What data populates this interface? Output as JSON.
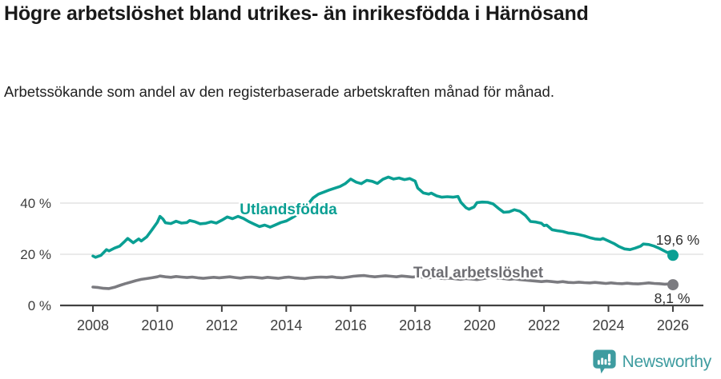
{
  "header": {
    "title": "Högre arbetslöshet bland utrikes- än inrikesfödda i Härnösand",
    "subtitle": "Arbetssökande som andel av den registerbaserade arbetskraften månad för månad."
  },
  "footer": {
    "brand": "Newsworthy"
  },
  "chart_data": {
    "type": "line",
    "title": "Högre arbetslöshet bland utrikes- än inrikesfödda i Härnösand",
    "subtitle": "Arbetssökande som andel av den registerbaserade arbetskraften månad för månad.",
    "unit": "%",
    "grid": "horizontal-only",
    "legend_position": "inline-labels",
    "colors": {
      "grid": "#e3e3e3",
      "axis": "#404040",
      "axis_text": "#3d3d3d",
      "value_label": "#2e2e2e",
      "background": "#ffffff"
    },
    "x_axis": {
      "range": [
        2007,
        2026.95
      ],
      "ticks": [
        {
          "value": 2008,
          "label": "2008"
        },
        {
          "value": 2010,
          "label": "2010"
        },
        {
          "value": 2012,
          "label": "2012"
        },
        {
          "value": 2014,
          "label": "2014"
        },
        {
          "value": 2016,
          "label": "2016"
        },
        {
          "value": 2018,
          "label": "2018"
        },
        {
          "value": 2020,
          "label": "2020"
        },
        {
          "value": 2022,
          "label": "2022"
        },
        {
          "value": 2024,
          "label": "2024"
        },
        {
          "value": 2026,
          "label": "2026"
        }
      ]
    },
    "y_axis": {
      "range": [
        0,
        55
      ],
      "ticks": [
        {
          "value": 0,
          "label": "0 %"
        },
        {
          "value": 20,
          "label": "20 %"
        },
        {
          "value": 40,
          "label": "40 %"
        }
      ]
    },
    "series": [
      {
        "id": "utlandsfodda",
        "name": "Utlandsfödda",
        "color": "#0a9f93",
        "label_color": "#0a9f93",
        "end_label": "19,6 %",
        "end_value": 19.6,
        "points": [
          [
            2008.0,
            19.3
          ],
          [
            2008.08,
            18.8
          ],
          [
            2008.25,
            19.6
          ],
          [
            2008.42,
            21.8
          ],
          [
            2008.5,
            21.3
          ],
          [
            2008.67,
            22.4
          ],
          [
            2008.83,
            23.2
          ],
          [
            2009.0,
            25.2
          ],
          [
            2009.08,
            26.2
          ],
          [
            2009.25,
            24.5
          ],
          [
            2009.42,
            26.0
          ],
          [
            2009.5,
            25.2
          ],
          [
            2009.67,
            26.8
          ],
          [
            2009.83,
            29.5
          ],
          [
            2010.0,
            32.5
          ],
          [
            2010.08,
            34.8
          ],
          [
            2010.17,
            33.8
          ],
          [
            2010.25,
            32.3
          ],
          [
            2010.42,
            32.0
          ],
          [
            2010.58,
            32.9
          ],
          [
            2010.75,
            32.2
          ],
          [
            2010.92,
            32.4
          ],
          [
            2011.0,
            33.2
          ],
          [
            2011.17,
            32.7
          ],
          [
            2011.33,
            31.9
          ],
          [
            2011.5,
            32.1
          ],
          [
            2011.67,
            32.7
          ],
          [
            2011.83,
            32.2
          ],
          [
            2012.0,
            33.3
          ],
          [
            2012.17,
            34.6
          ],
          [
            2012.33,
            33.9
          ],
          [
            2012.5,
            34.8
          ],
          [
            2012.67,
            34.0
          ],
          [
            2012.83,
            32.8
          ],
          [
            2013.0,
            31.8
          ],
          [
            2013.17,
            30.8
          ],
          [
            2013.33,
            31.4
          ],
          [
            2013.5,
            30.6
          ],
          [
            2013.67,
            31.5
          ],
          [
            2013.83,
            32.4
          ],
          [
            2014.0,
            33.0
          ],
          [
            2014.17,
            34.2
          ],
          [
            2014.33,
            35.4
          ],
          [
            2014.5,
            37.0
          ],
          [
            2014.67,
            39.5
          ],
          [
            2014.83,
            42.0
          ],
          [
            2015.0,
            43.5
          ],
          [
            2015.17,
            44.3
          ],
          [
            2015.33,
            45.1
          ],
          [
            2015.5,
            45.8
          ],
          [
            2015.67,
            46.5
          ],
          [
            2015.83,
            47.6
          ],
          [
            2016.0,
            49.4
          ],
          [
            2016.17,
            48.2
          ],
          [
            2016.33,
            47.6
          ],
          [
            2016.5,
            48.9
          ],
          [
            2016.67,
            48.5
          ],
          [
            2016.83,
            47.7
          ],
          [
            2017.0,
            49.3
          ],
          [
            2017.17,
            50.2
          ],
          [
            2017.33,
            49.4
          ],
          [
            2017.5,
            49.8
          ],
          [
            2017.67,
            49.2
          ],
          [
            2017.83,
            49.6
          ],
          [
            2018.0,
            48.6
          ],
          [
            2018.08,
            45.9
          ],
          [
            2018.25,
            44.0
          ],
          [
            2018.42,
            43.5
          ],
          [
            2018.5,
            43.9
          ],
          [
            2018.67,
            42.8
          ],
          [
            2018.83,
            42.3
          ],
          [
            2019.0,
            42.5
          ],
          [
            2019.17,
            42.3
          ],
          [
            2019.33,
            42.6
          ],
          [
            2019.42,
            40.3
          ],
          [
            2019.58,
            38.2
          ],
          [
            2019.67,
            37.6
          ],
          [
            2019.83,
            38.5
          ],
          [
            2019.92,
            40.2
          ],
          [
            2020.08,
            40.4
          ],
          [
            2020.25,
            40.3
          ],
          [
            2020.42,
            39.7
          ],
          [
            2020.58,
            38.0
          ],
          [
            2020.75,
            36.4
          ],
          [
            2020.92,
            36.6
          ],
          [
            2021.08,
            37.4
          ],
          [
            2021.25,
            36.8
          ],
          [
            2021.42,
            35.2
          ],
          [
            2021.58,
            32.8
          ],
          [
            2021.75,
            32.6
          ],
          [
            2021.92,
            32.1
          ],
          [
            2022.0,
            31.2
          ],
          [
            2022.08,
            31.4
          ],
          [
            2022.25,
            29.6
          ],
          [
            2022.42,
            29.2
          ],
          [
            2022.58,
            28.9
          ],
          [
            2022.75,
            28.3
          ],
          [
            2022.92,
            28.1
          ],
          [
            2023.08,
            27.7
          ],
          [
            2023.25,
            27.2
          ],
          [
            2023.42,
            26.5
          ],
          [
            2023.58,
            26.0
          ],
          [
            2023.75,
            25.8
          ],
          [
            2023.83,
            26.2
          ],
          [
            2024.0,
            25.2
          ],
          [
            2024.17,
            24.2
          ],
          [
            2024.33,
            23.0
          ],
          [
            2024.5,
            22.1
          ],
          [
            2024.67,
            21.8
          ],
          [
            2024.83,
            22.4
          ],
          [
            2025.0,
            23.2
          ],
          [
            2025.08,
            24.0
          ],
          [
            2025.25,
            23.8
          ],
          [
            2025.42,
            23.2
          ],
          [
            2025.58,
            22.3
          ],
          [
            2025.75,
            21.2
          ],
          [
            2025.83,
            20.7
          ],
          [
            2025.92,
            21.0
          ],
          [
            2026.0,
            19.6
          ]
        ]
      },
      {
        "id": "total",
        "name": "Total arbetslöshet",
        "color": "#7b7b80",
        "label_color": "#6e6e73",
        "end_label": "8,1 %",
        "end_value": 8.1,
        "points": [
          [
            2008.0,
            7.2
          ],
          [
            2008.17,
            7.0
          ],
          [
            2008.33,
            6.7
          ],
          [
            2008.5,
            6.6
          ],
          [
            2008.67,
            7.1
          ],
          [
            2008.83,
            7.8
          ],
          [
            2009.0,
            8.5
          ],
          [
            2009.17,
            9.1
          ],
          [
            2009.33,
            9.7
          ],
          [
            2009.5,
            10.2
          ],
          [
            2009.67,
            10.5
          ],
          [
            2009.83,
            10.8
          ],
          [
            2010.0,
            11.2
          ],
          [
            2010.08,
            11.5
          ],
          [
            2010.25,
            11.2
          ],
          [
            2010.42,
            11.0
          ],
          [
            2010.58,
            11.3
          ],
          [
            2010.75,
            11.1
          ],
          [
            2010.92,
            10.9
          ],
          [
            2011.08,
            11.1
          ],
          [
            2011.25,
            10.8
          ],
          [
            2011.42,
            10.6
          ],
          [
            2011.58,
            10.8
          ],
          [
            2011.75,
            11.0
          ],
          [
            2011.92,
            10.8
          ],
          [
            2012.08,
            11.0
          ],
          [
            2012.25,
            11.2
          ],
          [
            2012.42,
            10.9
          ],
          [
            2012.58,
            10.7
          ],
          [
            2012.75,
            11.0
          ],
          [
            2012.92,
            11.1
          ],
          [
            2013.08,
            10.9
          ],
          [
            2013.25,
            10.7
          ],
          [
            2013.42,
            11.0
          ],
          [
            2013.58,
            10.8
          ],
          [
            2013.75,
            10.6
          ],
          [
            2013.92,
            10.9
          ],
          [
            2014.08,
            11.1
          ],
          [
            2014.25,
            10.8
          ],
          [
            2014.42,
            10.6
          ],
          [
            2014.58,
            10.5
          ],
          [
            2014.75,
            10.8
          ],
          [
            2014.92,
            11.0
          ],
          [
            2015.08,
            11.1
          ],
          [
            2015.25,
            11.0
          ],
          [
            2015.42,
            11.2
          ],
          [
            2015.58,
            10.9
          ],
          [
            2015.75,
            10.8
          ],
          [
            2015.92,
            11.1
          ],
          [
            2016.08,
            11.4
          ],
          [
            2016.25,
            11.6
          ],
          [
            2016.42,
            11.7
          ],
          [
            2016.58,
            11.4
          ],
          [
            2016.75,
            11.2
          ],
          [
            2016.92,
            11.4
          ],
          [
            2017.08,
            11.6
          ],
          [
            2017.25,
            11.4
          ],
          [
            2017.42,
            11.2
          ],
          [
            2017.58,
            11.5
          ],
          [
            2017.75,
            11.3
          ],
          [
            2017.92,
            11.1
          ],
          [
            2018.08,
            11.3
          ],
          [
            2018.25,
            11.0
          ],
          [
            2018.42,
            10.8
          ],
          [
            2018.58,
            11.0
          ],
          [
            2018.75,
            10.7
          ],
          [
            2018.92,
            10.5
          ],
          [
            2019.08,
            10.7
          ],
          [
            2019.25,
            10.4
          ],
          [
            2019.42,
            10.2
          ],
          [
            2019.58,
            10.5
          ],
          [
            2019.75,
            10.3
          ],
          [
            2019.92,
            10.1
          ],
          [
            2020.08,
            10.4
          ],
          [
            2020.25,
            10.8
          ],
          [
            2020.42,
            11.0
          ],
          [
            2020.58,
            10.7
          ],
          [
            2020.75,
            10.5
          ],
          [
            2020.92,
            10.2
          ],
          [
            2021.08,
            10.4
          ],
          [
            2021.25,
            10.1
          ],
          [
            2021.42,
            9.9
          ],
          [
            2021.58,
            9.7
          ],
          [
            2021.75,
            9.5
          ],
          [
            2021.92,
            9.3
          ],
          [
            2022.08,
            9.5
          ],
          [
            2022.25,
            9.3
          ],
          [
            2022.42,
            9.1
          ],
          [
            2022.58,
            9.3
          ],
          [
            2022.75,
            9.0
          ],
          [
            2022.92,
            8.9
          ],
          [
            2023.08,
            9.1
          ],
          [
            2023.25,
            8.9
          ],
          [
            2023.42,
            8.8
          ],
          [
            2023.58,
            9.0
          ],
          [
            2023.75,
            8.8
          ],
          [
            2023.92,
            8.6
          ],
          [
            2024.08,
            8.8
          ],
          [
            2024.25,
            8.6
          ],
          [
            2024.42,
            8.5
          ],
          [
            2024.58,
            8.7
          ],
          [
            2024.75,
            8.5
          ],
          [
            2024.92,
            8.4
          ],
          [
            2025.08,
            8.6
          ],
          [
            2025.25,
            8.8
          ],
          [
            2025.42,
            8.6
          ],
          [
            2025.58,
            8.5
          ],
          [
            2025.75,
            8.3
          ],
          [
            2025.92,
            8.4
          ],
          [
            2026.0,
            8.1
          ]
        ]
      }
    ]
  },
  "logo": {
    "brand_color": "#3e9ca0"
  }
}
